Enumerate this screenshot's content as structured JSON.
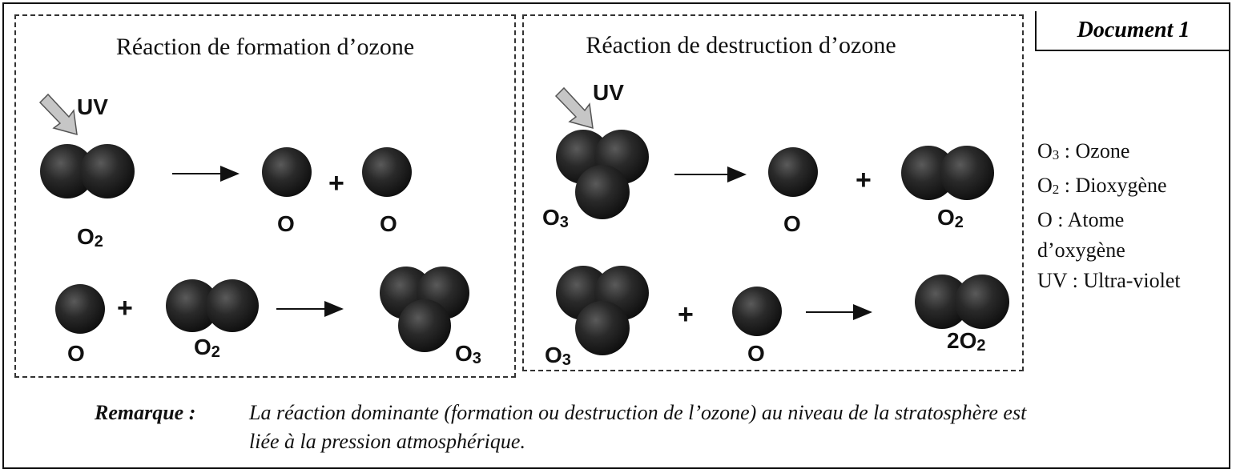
{
  "document_label": "Document 1",
  "formation": {
    "title": "Réaction de formation d’ozone",
    "uv": "UV",
    "row1": {
      "reactant": "O",
      "reactant_sub": "2",
      "product_a": "O",
      "plus": "+",
      "product_b": "O"
    },
    "row2": {
      "reactant_a": "O",
      "plus": "+",
      "reactant_b": "O",
      "reactant_b_sub": "2",
      "product": "O",
      "product_sub": "3"
    }
  },
  "destruction": {
    "title": "Réaction de destruction d’ozone",
    "uv": "UV",
    "row1": {
      "reactant": "O",
      "reactant_sub": "3",
      "product_a": "O",
      "plus": "+",
      "product_b": "O",
      "product_b_sub": "2"
    },
    "row2": {
      "reactant_a": "O",
      "reactant_a_sub": "3",
      "plus": "+",
      "reactant_b": "O",
      "product": "2O",
      "product_sub": "2"
    }
  },
  "legend": [
    {
      "symbol": "O",
      "sub": "3",
      "text": " : Ozone"
    },
    {
      "symbol": "O",
      "sub": "2",
      "text": " : Dioxygène"
    },
    {
      "symbol": "O",
      "sub": "",
      "text": " : Atome"
    },
    {
      "symbol": "",
      "sub": "",
      "text": "d’oxygène"
    },
    {
      "symbol": "UV",
      "sub": "",
      "text": " : Ultra-violet"
    }
  ],
  "remark": {
    "keyword": "Remarque :",
    "line1": "La réaction dominante (formation ou destruction de l’ozone) au niveau de la stratosphère est",
    "line2": "liée à la pression atmosphérique."
  },
  "colors": {
    "atom": "#222222",
    "ink": "#111111",
    "uv_arrow": "#b8b8b8"
  }
}
